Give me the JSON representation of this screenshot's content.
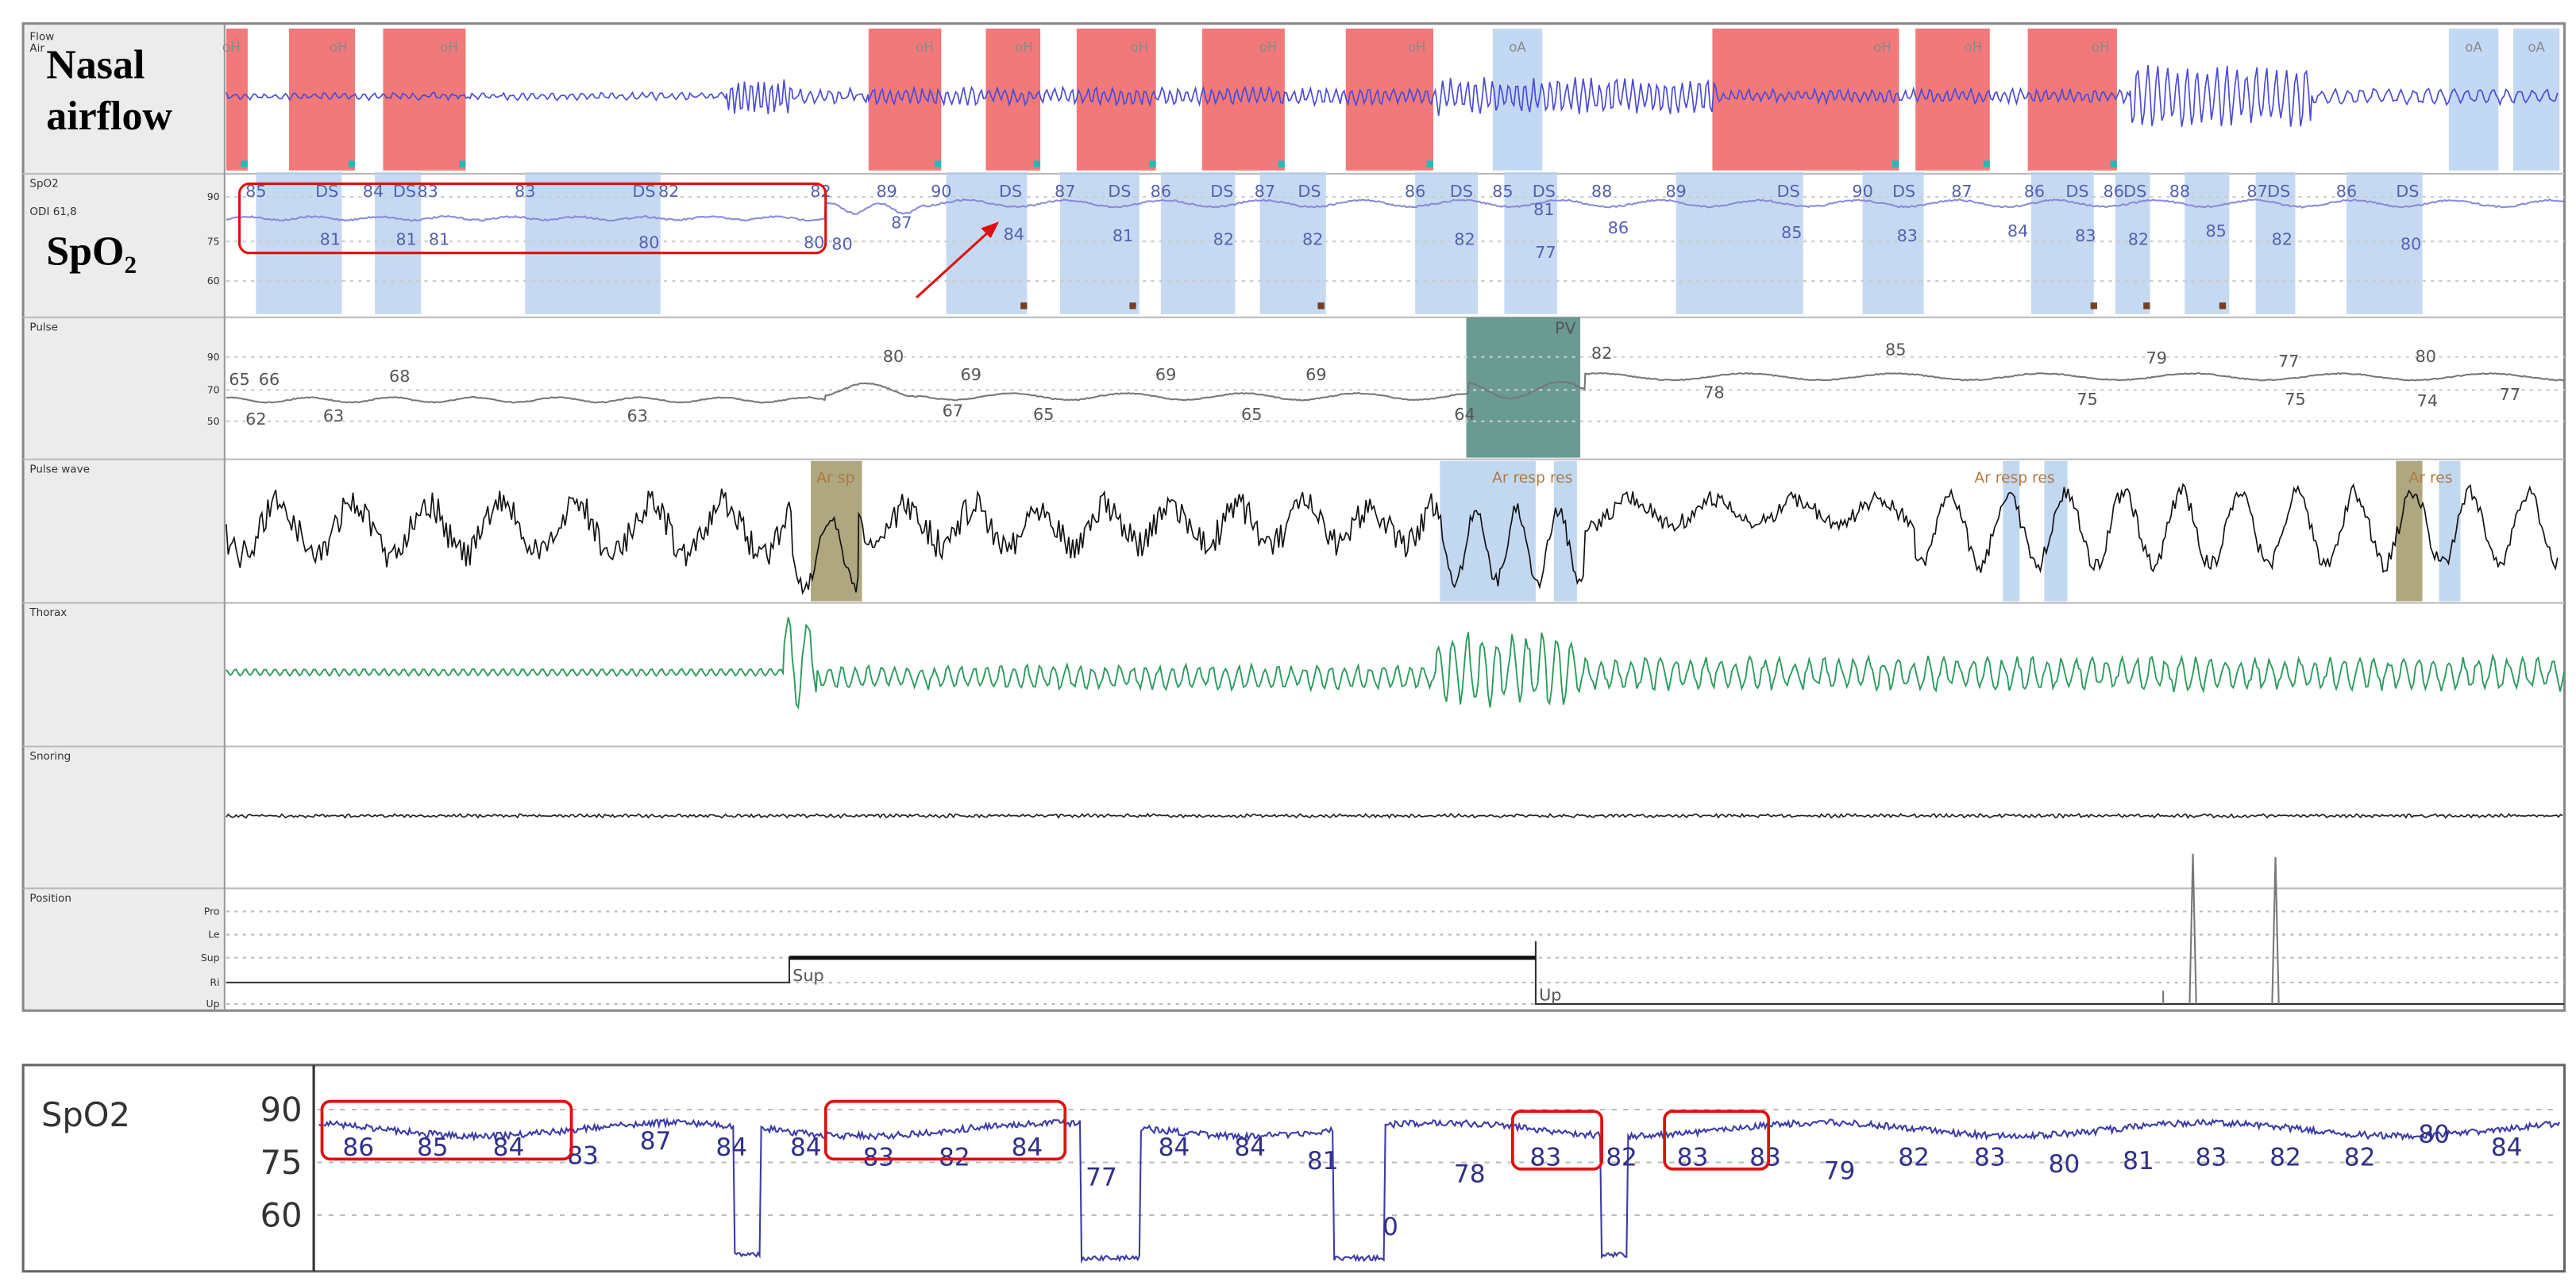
{
  "top_panel": {
    "channels": [
      "Flow",
      "SpO2",
      "Pulse",
      "Pulse wave",
      "Thorax",
      "Snoring",
      "Position"
    ],
    "flow_sublabel": "Air",
    "odi": "ODI 61,8",
    "overlay_labels": [
      "Nasal",
      "airflow",
      "SpO₂"
    ],
    "flow_events": [
      "oH",
      "oH",
      "oH",
      "oH",
      "oH",
      "oH",
      "oH",
      "oH",
      "oH",
      "oH",
      "oH",
      "oA",
      "oA",
      "oA"
    ],
    "spo2_axis": [
      "90",
      "75",
      "60"
    ],
    "spo2_labels": [
      "85",
      "DS",
      "84",
      "DS",
      "83",
      "83",
      "DS",
      "82",
      "82",
      "89",
      "90",
      "DS",
      "87",
      "DS",
      "86",
      "DS",
      "87",
      "DS",
      "86",
      "DS",
      "85",
      "DS",
      "88",
      "89",
      "DS",
      "90",
      "DS",
      "87",
      "86",
      "DS",
      "86",
      "DS",
      "88",
      "87",
      "DS",
      "86",
      "DS"
    ],
    "spo2_lower_labels": [
      "81",
      "81",
      "81",
      "80",
      "80",
      "80",
      "87",
      "84",
      "81",
      "82",
      "82",
      "82",
      "81",
      "77",
      "86",
      "85",
      "83",
      "84",
      "83",
      "82",
      "85",
      "82",
      "80"
    ],
    "pulse_axis": [
      "90",
      "70",
      "50"
    ],
    "pulse_labels": [
      "65",
      "66",
      "68",
      "62",
      "63",
      "63",
      "80",
      "69",
      "67",
      "65",
      "69",
      "65",
      "69",
      "64",
      "PV",
      "82",
      "78",
      "85",
      "75",
      "79",
      "75",
      "77",
      "74",
      "80",
      "77"
    ],
    "pulse_wave_events": [
      "Ar sp",
      "Ar resp res",
      "Ar resp res",
      "Ar res"
    ],
    "position_axis": [
      "Pro",
      "Le",
      "Sup",
      "Ri",
      "Up"
    ],
    "position_labels": [
      "Sup",
      "Up"
    ]
  },
  "bottom_panel": {
    "title": "SpO2",
    "axis": [
      "90",
      "75",
      "60"
    ],
    "labels": [
      "86",
      "85",
      "84",
      "83",
      "87",
      "84",
      "84",
      "83",
      "82",
      "84",
      "77",
      "84",
      "84",
      "81",
      "0",
      "78",
      "83",
      "82",
      "83",
      "83",
      "79",
      "82",
      "83",
      "80",
      "81",
      "83",
      "82",
      "82",
      "80",
      "84"
    ]
  }
}
